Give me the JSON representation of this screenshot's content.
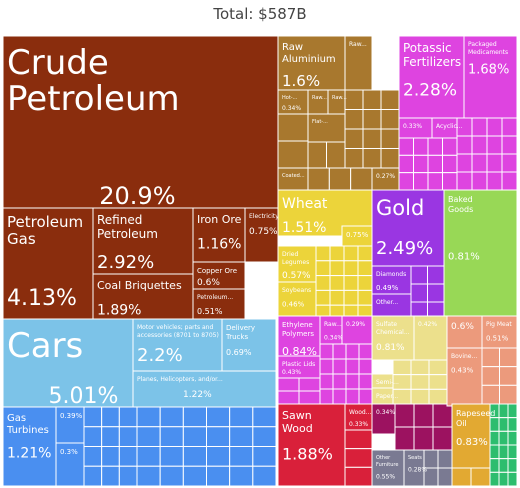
{
  "chart_data": {
    "type": "treemap",
    "title": "Total: $587B",
    "tiles": [
      {
        "label": "Crude Petroleum",
        "value": "20.9%",
        "color": "#8a2d0d"
      },
      {
        "label": "Petroleum Gas",
        "value": "4.13%",
        "color": "#8a2d0d"
      },
      {
        "label": "Refined Petroleum",
        "value": "2.92%",
        "color": "#8a2d0d"
      },
      {
        "label": "Coal Briquettes",
        "value": "1.89%",
        "color": "#8a2d0d"
      },
      {
        "label": "Iron Ore",
        "value": "1.16%",
        "color": "#8a2d0d"
      },
      {
        "label": "Electricity",
        "value": "0.75%",
        "color": "#8a2d0d"
      },
      {
        "label": "Copper Ore",
        "value": "0.6%",
        "color": "#8a2d0d"
      },
      {
        "label": "Petroleum...",
        "value": "0.51%",
        "color": "#8a2d0d"
      },
      {
        "label": "Cars",
        "value": "5.01%",
        "color": "#7cc3e8"
      },
      {
        "label": "Motor vehicles; parts and accessories (8701 to 8705)",
        "value": "2.2%",
        "color": "#7cc3e8"
      },
      {
        "label": "Delivery Trucks",
        "value": "0.69%",
        "color": "#7cc3e8"
      },
      {
        "label": "Planes, Helicopters, and/or...",
        "value": "1.22%",
        "color": "#7cc3e8"
      },
      {
        "label": "Gas Turbines",
        "value": "1.21%",
        "color": "#4a8ff0"
      },
      {
        "label": "",
        "value": "0.39%",
        "color": "#4a8ff0"
      },
      {
        "label": "",
        "value": "0.3%",
        "color": "#4a8ff0"
      },
      {
        "label": "Raw Aluminium",
        "value": "1.6%",
        "color": "#a8782e"
      },
      {
        "label": "Raw...",
        "value": "",
        "color": "#a8782e"
      },
      {
        "label": "Hot-...",
        "value": "0.34%",
        "color": "#a8782e"
      },
      {
        "label": "Raw...",
        "value": "",
        "color": "#a8782e"
      },
      {
        "label": "Raw...",
        "value": "",
        "color": "#a8782e"
      },
      {
        "label": "Flat-...",
        "value": "",
        "color": "#a8782e"
      },
      {
        "label": "Coated...",
        "value": "",
        "color": "#a8782e"
      },
      {
        "label": "",
        "value": "0.27%",
        "color": "#a8782e"
      },
      {
        "label": "Potassic Fertilizers",
        "value": "2.28%",
        "color": "#de44e0"
      },
      {
        "label": "Packaged Medicaments",
        "value": "1.68%",
        "color": "#de44e0"
      },
      {
        "label": "",
        "value": "0.33%",
        "color": "#de44e0"
      },
      {
        "label": "Acyclic...",
        "value": "",
        "color": "#de44e0"
      },
      {
        "label": "Wheat",
        "value": "1.51%",
        "color": "#ecd43a"
      },
      {
        "label": "",
        "value": "0.75%",
        "color": "#ecd43a"
      },
      {
        "label": "Dried Legumes",
        "value": "0.57%",
        "color": "#ecd43a"
      },
      {
        "label": "Soybeans",
        "value": "0.46%",
        "color": "#ecd43a"
      },
      {
        "label": "Gold",
        "value": "2.49%",
        "color": "#9a36e2"
      },
      {
        "label": "Diamonds",
        "value": "0.49%",
        "color": "#9a36e2"
      },
      {
        "label": "Other...",
        "value": "",
        "color": "#9a36e2"
      },
      {
        "label": "Baked Goods",
        "value": "0.81%",
        "color": "#98d856"
      },
      {
        "label": "Ethylene Polymers",
        "value": "0.84%",
        "color": "#de44e0"
      },
      {
        "label": "Raw...",
        "value": "0.34%",
        "color": "#de44e0"
      },
      {
        "label": "",
        "value": "0.29%",
        "color": "#de44e0"
      },
      {
        "label": "Plastic Lids",
        "value": "0.43%",
        "color": "#de44e0"
      },
      {
        "label": "Sulfate Chemical...",
        "value": "0.81%",
        "color": "#ece08c"
      },
      {
        "label": "",
        "value": "0.42%",
        "color": "#ece08c"
      },
      {
        "label": "Semi-...",
        "value": "",
        "color": "#ece08c"
      },
      {
        "label": "Paper...",
        "value": "",
        "color": "#ece08c"
      },
      {
        "label": "",
        "value": "0.6%",
        "color": "#ec9a7c"
      },
      {
        "label": "Pig Meat",
        "value": "0.51%",
        "color": "#ec9a7c"
      },
      {
        "label": "Bovine...",
        "value": "0.43%",
        "color": "#ec9a7c"
      },
      {
        "label": "Sawn Wood",
        "value": "1.88%",
        "color": "#d9203a"
      },
      {
        "label": "Wood...",
        "value": "0.33%",
        "color": "#d9203a"
      },
      {
        "label": "",
        "value": "0.34%",
        "color": "#9c1260"
      },
      {
        "label": "Other Furniture",
        "value": "0.55%",
        "color": "#7a7a92"
      },
      {
        "label": "Seats",
        "value": "0.28%",
        "color": "#7a7a92"
      },
      {
        "label": "Rapeseed Oil",
        "value": "0.83%",
        "color": "#e2a932"
      }
    ],
    "colors": {
      "mineral": "#8a2d0d",
      "vehicles": "#7cc3e8",
      "machines": "#4a8ff0",
      "metals": "#a8782e",
      "chemicals": "#de44e0",
      "vegetable": "#ecd43a",
      "precious": "#9a36e2",
      "food": "#98d856",
      "paper": "#ece08c",
      "animal": "#ec9a7c",
      "wood": "#d9203a",
      "textiles": "#9c1260",
      "misc": "#7a7a92",
      "fats": "#e2a932",
      "other": "#2dbd6e"
    }
  }
}
